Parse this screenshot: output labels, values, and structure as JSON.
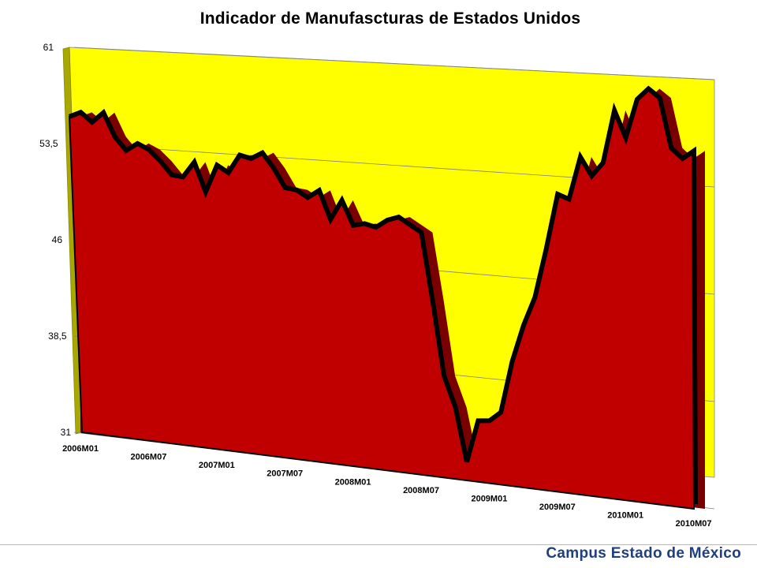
{
  "chart_data": {
    "type": "area",
    "title": "Indicador de Manufascturas de Estados Unidos",
    "xlabel": "",
    "ylabel": "",
    "ylim": [
      31,
      61
    ],
    "y_ticks": [
      "61",
      "53,5",
      "46",
      "38,5",
      "31"
    ],
    "y_tick_values": [
      61,
      53.5,
      46,
      38.5,
      31
    ],
    "x_tick_labels": [
      "2006M01",
      "2006M07",
      "2007M01",
      "2007M07",
      "2008M01",
      "2008M07",
      "2009M01",
      "2009M07",
      "2010M01",
      "2010M07"
    ],
    "x_tick_index": [
      0,
      6,
      12,
      18,
      24,
      30,
      36,
      42,
      48,
      54
    ],
    "grid": true,
    "colors": {
      "area": "#c00000",
      "line": "#000000",
      "wall": "#ffff00",
      "wall_edge": "#a8a800"
    },
    "series": [
      {
        "x": [
          "2006M01",
          "2006M02",
          "2006M03",
          "2006M04",
          "2006M05",
          "2006M06",
          "2006M07",
          "2006M08",
          "2006M09",
          "2006M10",
          "2006M11",
          "2006M12",
          "2007M01",
          "2007M02",
          "2007M03",
          "2007M04",
          "2007M05",
          "2007M06",
          "2007M07",
          "2007M08",
          "2007M09",
          "2007M10",
          "2007M11",
          "2007M12",
          "2008M01",
          "2008M02",
          "2008M03",
          "2008M04",
          "2008M05",
          "2008M06",
          "2008M07",
          "2008M08",
          "2008M09",
          "2008M10",
          "2008M11",
          "2008M12",
          "2009M01",
          "2009M02",
          "2009M03",
          "2009M04",
          "2009M05",
          "2009M06",
          "2009M07",
          "2009M08",
          "2009M09",
          "2009M10",
          "2009M11",
          "2009M12",
          "2010M01",
          "2010M02",
          "2010M03",
          "2010M04",
          "2010M05",
          "2010M06",
          "2010M07",
          "2010M08"
        ],
        "values": [
          55.6,
          56.0,
          55.3,
          56.1,
          54.3,
          53.3,
          53.9,
          53.5,
          52.7,
          51.7,
          51.6,
          52.8,
          50.6,
          52.7,
          52.2,
          53.6,
          53.4,
          53.9,
          52.8,
          51.4,
          51.3,
          50.8,
          51.4,
          49.3,
          50.8,
          49.0,
          49.2,
          49.0,
          49.6,
          49.9,
          49.4,
          48.9,
          43.9,
          38.5,
          36.3,
          32.4,
          35.5,
          35.6,
          36.3,
          40.1,
          42.8,
          44.9,
          48.5,
          52.5,
          52.2,
          55.3,
          54.0,
          55.0,
          58.8,
          56.9,
          59.7,
          60.5,
          59.9,
          56.4,
          55.7,
          56.3
        ]
      }
    ]
  },
  "footer": {
    "campus": "Campus Estado de México"
  }
}
